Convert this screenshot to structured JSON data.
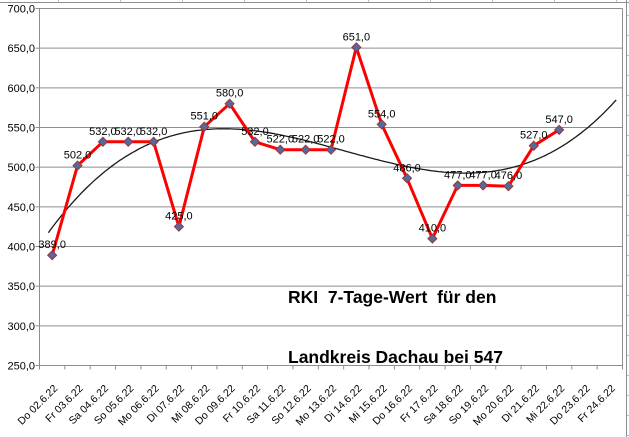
{
  "chart_data": {
    "type": "line",
    "title": "",
    "categories": [
      "Do 02.6.22",
      "Fr 03.6.22",
      "Sa 04.6.22",
      "So 05.6.22",
      "Mo 06.6.22",
      "Di 07.6.22",
      "Mi 08.6.22",
      "Do 09.6.22",
      "Fr 10.6.22",
      "Sa 11.6.22",
      "So 12.6.22",
      "Mo 13.6.22",
      "Di 14.6.22",
      "Mi 15.6.22",
      "Do 16.6.22",
      "Fr 17.6.22",
      "Sa 18.6.22",
      "So 19.6.22",
      "Mo 20.6.22",
      "Di 21.6.22",
      "Mi 22.6.22",
      "Do 23.6.22",
      "Fr 24.6.22"
    ],
    "series": [
      {
        "values": [
          389,
          502,
          532,
          532,
          532,
          425,
          551,
          580,
          532,
          522,
          522,
          522,
          651,
          554,
          486,
          410,
          477,
          477,
          476,
          527,
          547
        ],
        "marker": "diamond",
        "data_labels": [
          "389,0",
          "502,0",
          "532,0",
          "532,0",
          "532,0",
          "425,0",
          "551,0",
          "580,0",
          "532,0",
          "522,0",
          "522,0",
          "522,0",
          "651,0",
          "554,0",
          "486,0",
          "410,0",
          "477,0",
          "477,0",
          "476,0",
          "527,0",
          "547,0"
        ]
      }
    ],
    "trendline": {
      "type": "polynomial",
      "order": 3,
      "extend_to_category_index": 22.3
    },
    "ylim": [
      250,
      700
    ],
    "ytick_step": 50,
    "ytick_labels": [
      "700,0",
      "650,0",
      "600,0",
      "550,0",
      "500,0",
      "450,0",
      "400,0",
      "350,0",
      "300,0",
      "250,0"
    ],
    "grid": true,
    "legend": "none",
    "annotation": {
      "line1": "RKI  7-Tage-Wert  für den",
      "line2": "Landkreis Dachau bei 547"
    },
    "colors": {
      "series_line": "#fe0000",
      "trend_line": "#1a1a1a",
      "marker_fill": "#5569a1",
      "marker_stroke": "#963736",
      "grid": "#8e8e8e",
      "axis": "#8e8e8e",
      "text": "#000000",
      "sheet_line": "#8e8e8e",
      "sheet_tick": "#bfbfbf",
      "background": "#ffffff"
    }
  }
}
